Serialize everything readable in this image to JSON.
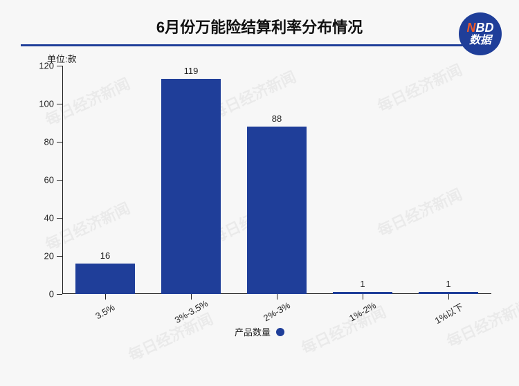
{
  "title": {
    "text": "6月份万能险结算利率分布情况",
    "fontsize": 22,
    "color": "#111111",
    "underline_color": "#1f3e99"
  },
  "logo": {
    "bg": "#1f3e99",
    "n_color": "#f05a28",
    "bd_color": "#ffffff",
    "n_text": "N",
    "bd_text": "BD",
    "sub_text": "数据"
  },
  "chart": {
    "type": "bar",
    "y_unit_label": "单位:款",
    "categories": [
      "3.5%",
      "3%-3.5%",
      "2%-3%",
      "1%-2%",
      "1%以下"
    ],
    "values": [
      16,
      119,
      88,
      1,
      1
    ],
    "bar_color": "#1f3e99",
    "bar_width": 0.7,
    "ylim": [
      0,
      120
    ],
    "ytick_step": 20,
    "yticks": [
      0,
      20,
      40,
      60,
      80,
      100,
      120
    ],
    "axis_color": "#222222",
    "label_fontsize": 13,
    "value_label_fontsize": 13,
    "background_color": "#f7f7f7",
    "x_label_rotation": -30
  },
  "legend": {
    "label": "产品数量",
    "color": "#1f3e99"
  },
  "watermark": {
    "text": "每日经济新闻",
    "color": "rgba(0,0,0,0.05)"
  }
}
